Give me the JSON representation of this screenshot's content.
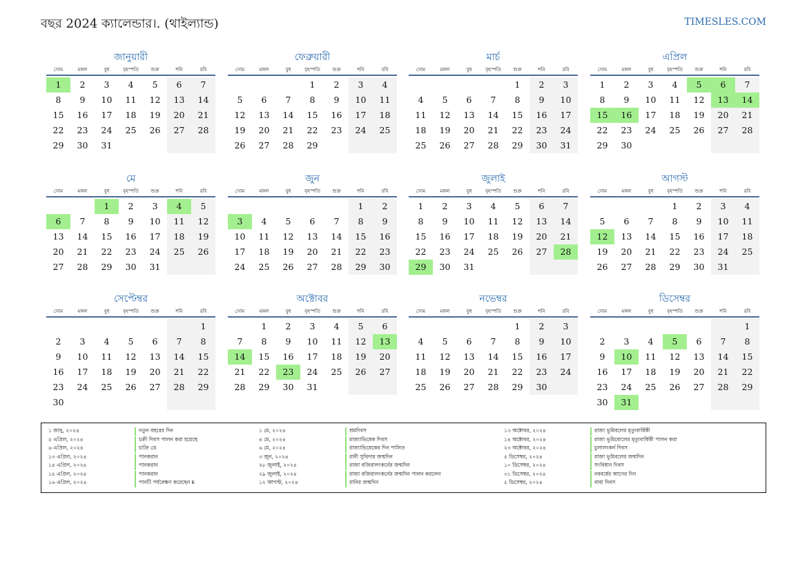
{
  "header": {
    "title": "বছর 2024 ক্যালেন্ডার।. (থাইল্যান্ড)",
    "site": "TIMESLES.COM"
  },
  "weekdays": [
    "সোম",
    "মঙ্গল",
    "বুধ",
    "বৃহস্পতি",
    "শুক্র",
    "শনি",
    "রবি"
  ],
  "months": [
    {
      "name": "জানুয়ারী",
      "start_offset": 0,
      "days": 31,
      "holidays": [
        1
      ]
    },
    {
      "name": "ফেব্রুয়ারী",
      "start_offset": 3,
      "days": 29,
      "holidays": []
    },
    {
      "name": "মার্চ",
      "start_offset": 4,
      "days": 31,
      "holidays": []
    },
    {
      "name": "এপ্রিল",
      "start_offset": 0,
      "days": 30,
      "holidays": [
        5,
        6,
        13,
        14,
        15,
        16
      ]
    },
    {
      "name": "মে",
      "start_offset": 2,
      "days": 31,
      "holidays": [
        1,
        4,
        6
      ]
    },
    {
      "name": "জুন",
      "start_offset": 5,
      "days": 30,
      "holidays": [
        3
      ]
    },
    {
      "name": "জুলাই",
      "start_offset": 0,
      "days": 31,
      "holidays": [
        28,
        29
      ]
    },
    {
      "name": "আগস্ট",
      "start_offset": 3,
      "days": 31,
      "holidays": [
        12
      ]
    },
    {
      "name": "সেপ্টেম্বর",
      "start_offset": 6,
      "days": 30,
      "holidays": []
    },
    {
      "name": "অক্টোবর",
      "start_offset": 1,
      "days": 31,
      "holidays": [
        13,
        14,
        23
      ]
    },
    {
      "name": "নভেম্বর",
      "start_offset": 4,
      "days": 30,
      "holidays": []
    },
    {
      "name": "ডিসেম্বর",
      "start_offset": 6,
      "days": 31,
      "holidays": [
        5,
        10,
        31
      ]
    }
  ],
  "holidays": [
    {
      "date": "১ জানু, ২০২৪",
      "name": "নতুন বছরের দিন"
    },
    {
      "date": "৫ এপ্রিল, ২০২৪",
      "name": "চক্রী দিবস পালন করা হয়েছে"
    },
    {
      "date": "৬ এপ্রিল, ২০২৪",
      "name": "চাক্রি ডে"
    },
    {
      "date": "১৩ এপ্রিল, ২০২৪",
      "name": "পানকরান"
    },
    {
      "date": "১৪ এপ্রিল, ২০২৪",
      "name": "পানকরান"
    },
    {
      "date": "১৫ এপ্রিল, ২০২৪",
      "name": "পানকরান"
    },
    {
      "date": "১৬ এপ্রিল, ২০২৪",
      "name": "পানটি পর্যবেক্ষণ করেছেন k"
    },
    {
      "date": "১ মে, ২০২৪",
      "name": "শ্রমদিবস"
    },
    {
      "date": "৪ মে, ২০২৪",
      "name": "রাজ্যাভিষেক দিবস"
    },
    {
      "date": "৬ মে, ২০২৪",
      "name": "রাজ্যাভিষেকের দিন পালিত"
    },
    {
      "date": "৩ জুন, ২০২৪",
      "name": "রানী সুথিদার জন্মদিন"
    },
    {
      "date": "২৮ জুলাই, ২০২৪",
      "name": "রাজা বজিরালংকর্নের জন্মদিন"
    },
    {
      "date": "২৯ জুলাই, ২০২৪",
      "name": "রাজা বজিরালংকর্নের জন্মদিন পালন করলেন"
    },
    {
      "date": "১২ আগস্ট, ২০২৪",
      "name": "রানির জন্মদিন"
    },
    {
      "date": "১৩ অক্টোবর, ২০২৪",
      "name": "রাজা ভূমিবলের মৃত্যুবার্ষিকী"
    },
    {
      "date": "১৪ অক্টোবর, ২০২৪",
      "name": "রাজা ভূমিবোলের মৃত্যুবার্ষিকী পালন করা"
    },
    {
      "date": "২৩ অক্টোবর, ২০২৪",
      "name": "চুলালংকর্ন দিবস"
    },
    {
      "date": "৫ ডিসেম্বর, ২০২৪",
      "name": "রাজা ভূমিবলের জন্মদিন"
    },
    {
      "date": "১০ ডিসেম্বর, ২০২৪",
      "name": "সংবিধান দিবস"
    },
    {
      "date": "৩১ ডিসেম্বর, ২০২৪",
      "name": "নববর্ষের আগের দিন"
    },
    {
      "date": "৫ ডিসেম্বর, ২০২৪",
      "name": "বাবা দিবস"
    }
  ],
  "colors": {
    "holiday": "#a3ef8f",
    "weekend": "#f2f2f2",
    "accent": "#2b6cb0"
  }
}
